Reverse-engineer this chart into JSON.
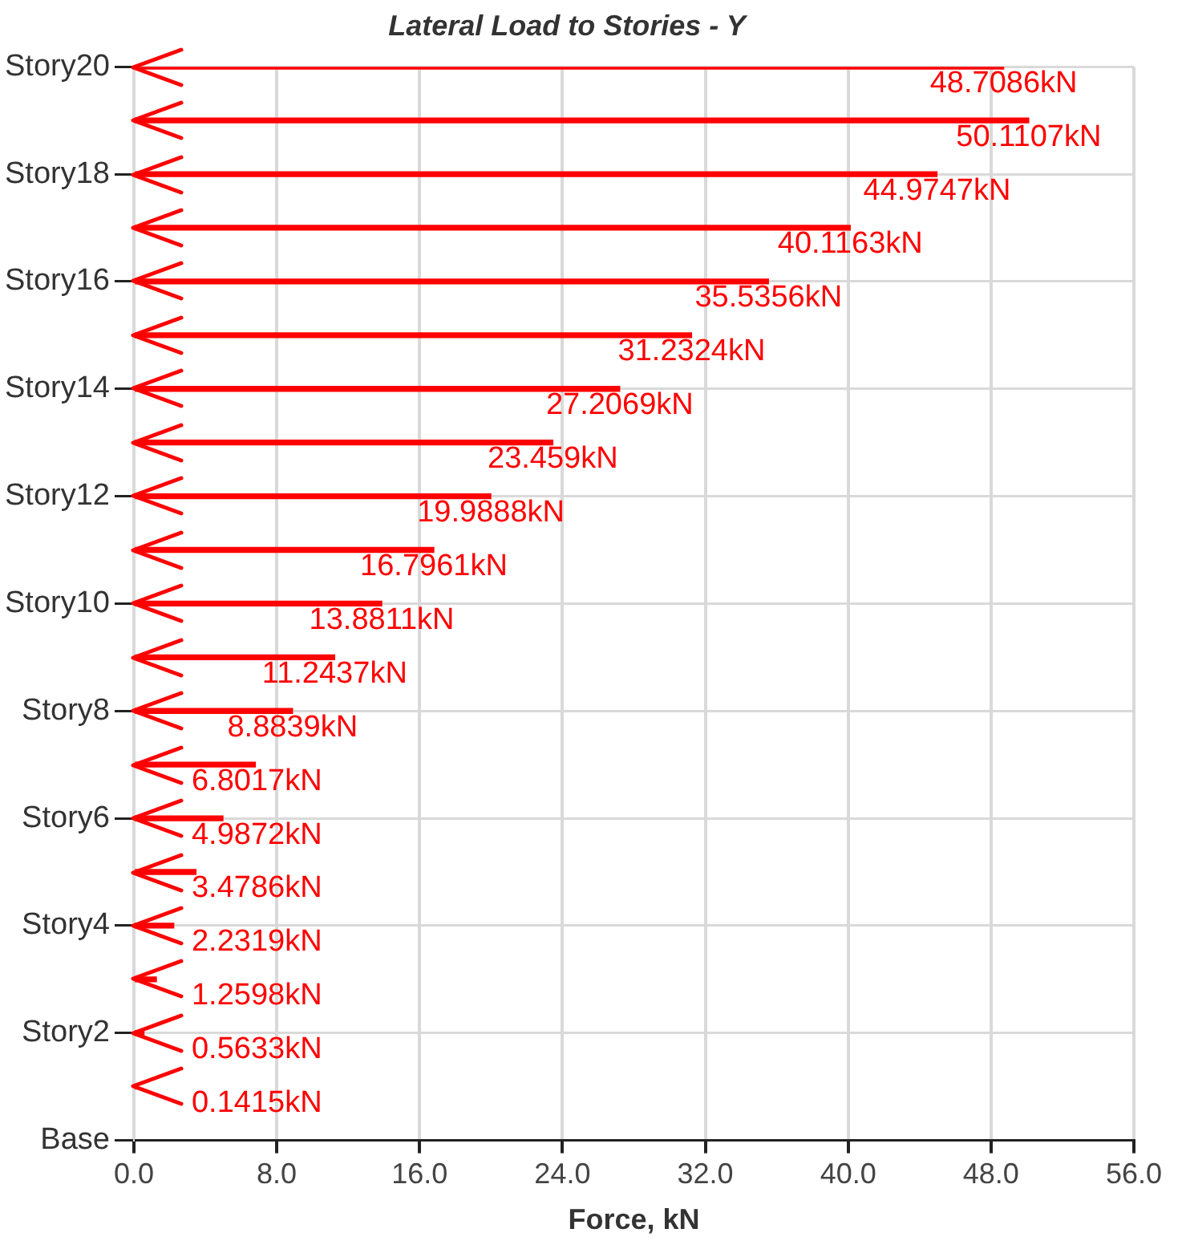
{
  "chart_data": {
    "type": "bar",
    "orientation": "horizontal",
    "title": "Lateral Load to Stories - Y",
    "xlabel": "Force, kN",
    "categories": [
      "Story20",
      null,
      "Story18",
      null,
      "Story16",
      null,
      "Story14",
      null,
      "Story12",
      null,
      "Story10",
      null,
      "Story8",
      null,
      "Story6",
      null,
      "Story4",
      null,
      "Story2",
      null,
      "Base"
    ],
    "values": [
      48.7086,
      50.1107,
      44.9747,
      40.1163,
      35.5356,
      31.2324,
      27.2069,
      23.459,
      19.9888,
      16.7961,
      13.8811,
      11.2437,
      8.8839,
      6.8017,
      4.9872,
      3.4786,
      2.2319,
      1.2598,
      0.5633,
      0.1415,
      null
    ],
    "value_labels": [
      "48.7086kN",
      "50.1107kN",
      "44.9747kN",
      "40.1163kN",
      "35.5356kN",
      "31.2324kN",
      "27.2069kN",
      "23.459kN",
      "19.9888kN",
      "16.7961kN",
      "13.8811kN",
      "11.2437kN",
      "8.8839kN",
      "6.8017kN",
      "4.9872kN",
      "3.4786kN",
      "2.2319kN",
      "1.2598kN",
      "0.5633kN",
      "0.1415kN",
      null
    ],
    "color": "#ff0000",
    "xlim": [
      0,
      56
    ],
    "xticks": [
      {
        "value": 0,
        "label": "0.0"
      },
      {
        "value": 8,
        "label": "8.0"
      },
      {
        "value": 16,
        "label": "16.0"
      },
      {
        "value": 24,
        "label": "24.0"
      },
      {
        "value": 32,
        "label": "32.0"
      },
      {
        "value": 40,
        "label": "40.0"
      },
      {
        "value": 48,
        "label": "48.0"
      },
      {
        "value": 56,
        "label": "56.0"
      }
    ],
    "grid": true
  }
}
